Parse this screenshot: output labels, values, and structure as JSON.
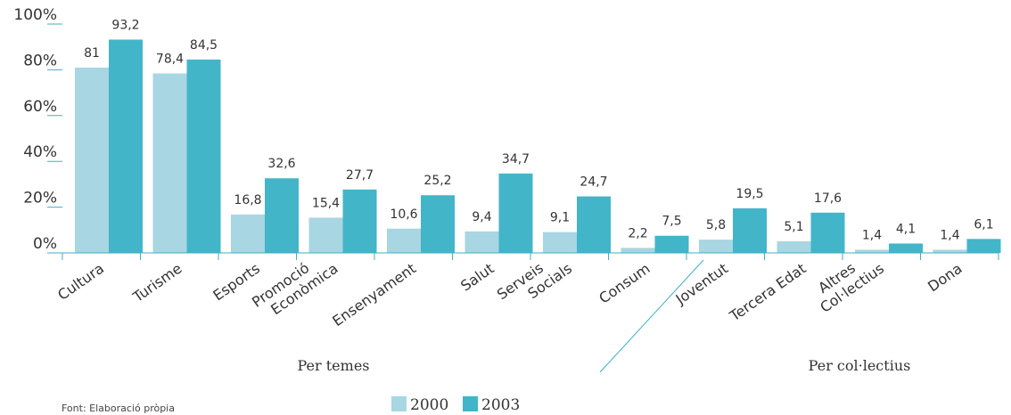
{
  "chart_data": {
    "type": "bar",
    "categories": [
      [
        "Cultura"
      ],
      [
        "Turisme"
      ],
      [
        "Esports"
      ],
      [
        "Promoció",
        "Econòmica"
      ],
      [
        "Ensenyament"
      ],
      [
        "Salut"
      ],
      [
        "Serveis",
        "Socials"
      ],
      [
        "Consum"
      ],
      [
        "Joventut"
      ],
      [
        "Tercera Edat"
      ],
      [
        "Altres",
        "Col·lectius"
      ],
      [
        "Dona"
      ]
    ],
    "series": [
      {
        "name": "2000",
        "color": "#a8d6e2",
        "values": [
          81,
          78.4,
          16.8,
          15.4,
          10.6,
          9.4,
          9.1,
          2.2,
          5.8,
          5.1,
          1.4,
          1.4
        ],
        "labels": [
          "81",
          "78,4",
          "16,8",
          "15,4",
          "10,6",
          "9,4",
          "9,1",
          "2,2",
          "5,8",
          "5,1",
          "1,4",
          "1,4"
        ]
      },
      {
        "name": "2003",
        "color": "#43b5c9",
        "values": [
          93.2,
          84.5,
          32.6,
          27.7,
          25.2,
          34.7,
          24.7,
          7.5,
          19.5,
          17.6,
          4.1,
          6.1
        ],
        "labels": [
          "93,2",
          "84,5",
          "32,6",
          "27,7",
          "25,2",
          "34,7",
          "24,7",
          "7,5",
          "19,5",
          "17,6",
          "4,1",
          "6,1"
        ]
      }
    ],
    "ylim": [
      0,
      100
    ],
    "yticks": [
      "0%",
      "20%",
      "40%",
      "60%",
      "80%",
      "100%"
    ],
    "groups": [
      "Per temes",
      "Per col·lectius"
    ],
    "legend": "bottom-center",
    "grid": false
  },
  "source": "Font: Elaboració pròpia"
}
